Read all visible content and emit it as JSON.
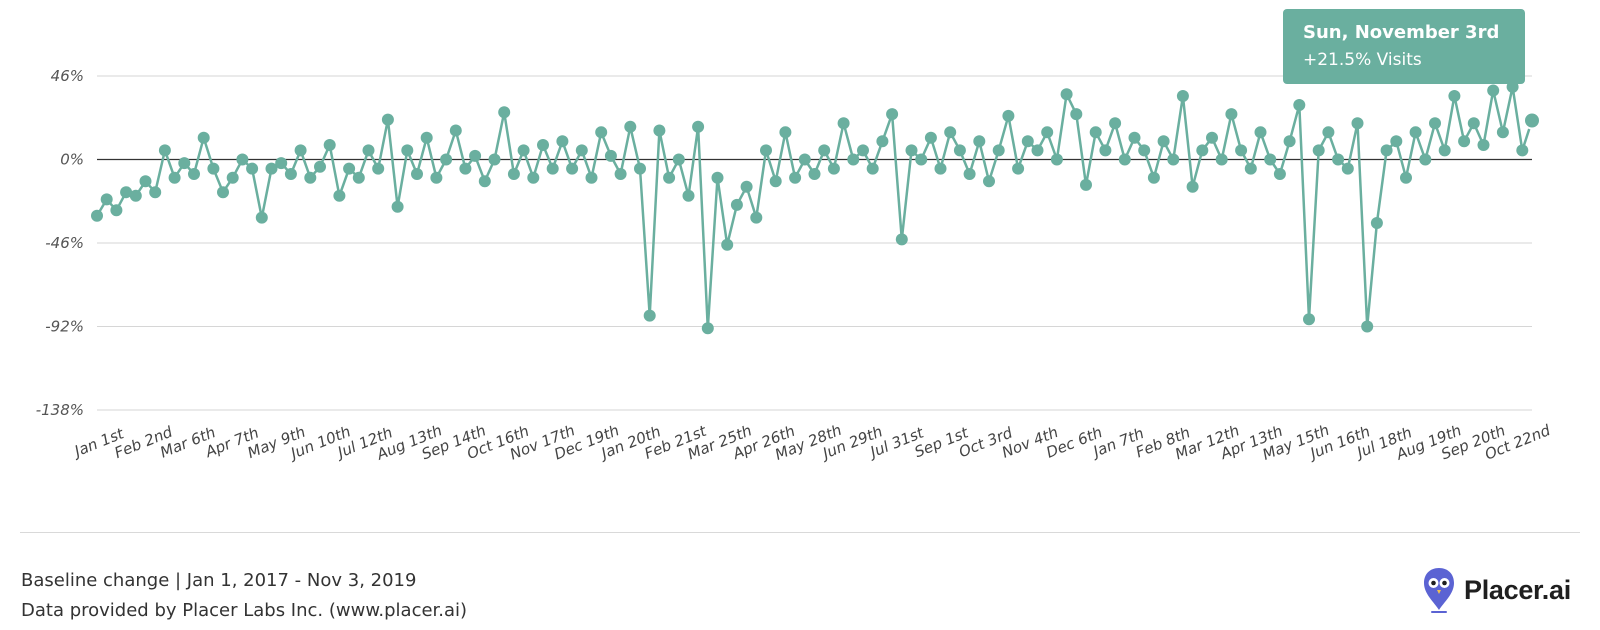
{
  "chart_data": {
    "type": "line",
    "series_color": "#6aaf9f",
    "y_ticks": [
      "46%",
      "0%",
      "-46%",
      "-92%",
      "-138%"
    ],
    "ylim": [
      -138,
      46
    ],
    "x_labels": [
      "Jan 1st",
      "Feb 2nd",
      "Mar 6th",
      "Apr 7th",
      "May 9th",
      "Jun 10th",
      "Jul 12th",
      "Aug 13th",
      "Sep 14th",
      "Oct 16th",
      "Nov 17th",
      "Dec 19th",
      "Jan 20th",
      "Feb 21st",
      "Mar 25th",
      "Apr 26th",
      "May 28th",
      "Jun 29th",
      "Jul 31st",
      "Sep 1st",
      "Oct 3rd",
      "Nov 4th",
      "Dec 6th",
      "Jan 7th",
      "Feb 8th",
      "Mar 12th",
      "Apr 13th",
      "May 15th",
      "Jun 16th",
      "Jul 18th",
      "Aug 19th",
      "Sep 20th",
      "Oct 22nd"
    ],
    "x_start": "2017-01-01",
    "x_end": "2019-11-03",
    "x_label_interval_days": 32,
    "series": [
      {
        "points": [
          [
            "2017-01-01",
            -31
          ],
          [
            "2017-01-08",
            -22
          ],
          [
            "2017-01-15",
            -28
          ],
          [
            "2017-01-22",
            -18
          ],
          [
            "2017-01-29",
            -20
          ],
          [
            "2017-02-05",
            -12
          ],
          [
            "2017-02-12",
            -18
          ],
          [
            "2017-02-19",
            5
          ],
          [
            "2017-02-26",
            -10
          ],
          [
            "2017-03-05",
            -2
          ],
          [
            "2017-03-12",
            -8
          ],
          [
            "2017-03-19",
            12
          ],
          [
            "2017-03-26",
            -5
          ],
          [
            "2017-04-02",
            -18
          ],
          [
            "2017-04-09",
            -10
          ],
          [
            "2017-04-16",
            0
          ],
          [
            "2017-04-23",
            -5
          ],
          [
            "2017-04-30",
            -32
          ],
          [
            "2017-05-07",
            -5
          ],
          [
            "2017-05-14",
            -2
          ],
          [
            "2017-05-21",
            -8
          ],
          [
            "2017-05-28",
            5
          ],
          [
            "2017-06-04",
            -10
          ],
          [
            "2017-06-11",
            -4
          ],
          [
            "2017-06-18",
            8
          ],
          [
            "2017-06-25",
            -20
          ],
          [
            "2017-07-02",
            -5
          ],
          [
            "2017-07-09",
            -10
          ],
          [
            "2017-07-16",
            5
          ],
          [
            "2017-07-23",
            -5
          ],
          [
            "2017-07-30",
            22
          ],
          [
            "2017-08-06",
            -26
          ],
          [
            "2017-08-13",
            5
          ],
          [
            "2017-08-20",
            -8
          ],
          [
            "2017-08-27",
            12
          ],
          [
            "2017-09-03",
            -10
          ],
          [
            "2017-09-10",
            0
          ],
          [
            "2017-09-17",
            16
          ],
          [
            "2017-09-24",
            -5
          ],
          [
            "2017-10-01",
            2
          ],
          [
            "2017-10-08",
            -12
          ],
          [
            "2017-10-15",
            0
          ],
          [
            "2017-10-22",
            26
          ],
          [
            "2017-10-29",
            -8
          ],
          [
            "2017-11-05",
            5
          ],
          [
            "2017-11-12",
            -10
          ],
          [
            "2017-11-19",
            8
          ],
          [
            "2017-11-26",
            -5
          ],
          [
            "2017-12-03",
            10
          ],
          [
            "2017-12-10",
            -5
          ],
          [
            "2017-12-17",
            5
          ],
          [
            "2017-12-24",
            -10
          ],
          [
            "2017-12-31",
            15
          ],
          [
            "2018-01-07",
            2
          ],
          [
            "2018-01-14",
            -8
          ],
          [
            "2018-01-21",
            18
          ],
          [
            "2018-01-28",
            -5
          ],
          [
            "2018-02-04",
            -86
          ],
          [
            "2018-02-11",
            16
          ],
          [
            "2018-02-18",
            -10
          ],
          [
            "2018-02-25",
            0
          ],
          [
            "2018-03-04",
            -20
          ],
          [
            "2018-03-11",
            18
          ],
          [
            "2018-03-18",
            -93
          ],
          [
            "2018-03-25",
            -10
          ],
          [
            "2018-04-01",
            -47
          ],
          [
            "2018-04-08",
            -25
          ],
          [
            "2018-04-15",
            -15
          ],
          [
            "2018-04-22",
            -32
          ],
          [
            "2018-04-29",
            5
          ],
          [
            "2018-05-06",
            -12
          ],
          [
            "2018-05-13",
            15
          ],
          [
            "2018-05-20",
            -10
          ],
          [
            "2018-05-27",
            0
          ],
          [
            "2018-06-03",
            -8
          ],
          [
            "2018-06-10",
            5
          ],
          [
            "2018-06-17",
            -5
          ],
          [
            "2018-06-24",
            20
          ],
          [
            "2018-07-01",
            0
          ],
          [
            "2018-07-08",
            5
          ],
          [
            "2018-07-15",
            -5
          ],
          [
            "2018-07-22",
            10
          ],
          [
            "2018-07-29",
            25
          ],
          [
            "2018-08-05",
            -44
          ],
          [
            "2018-08-12",
            5
          ],
          [
            "2018-08-19",
            0
          ],
          [
            "2018-08-26",
            12
          ],
          [
            "2018-09-02",
            -5
          ],
          [
            "2018-09-09",
            15
          ],
          [
            "2018-09-16",
            5
          ],
          [
            "2018-09-23",
            -8
          ],
          [
            "2018-09-30",
            10
          ],
          [
            "2018-10-07",
            -12
          ],
          [
            "2018-10-14",
            5
          ],
          [
            "2018-10-21",
            24
          ],
          [
            "2018-10-28",
            -5
          ],
          [
            "2018-11-04",
            10
          ],
          [
            "2018-11-11",
            5
          ],
          [
            "2018-11-18",
            15
          ],
          [
            "2018-11-25",
            0
          ],
          [
            "2018-12-02",
            36
          ],
          [
            "2018-12-09",
            25
          ],
          [
            "2018-12-16",
            -14
          ],
          [
            "2018-12-23",
            15
          ],
          [
            "2018-12-30",
            5
          ],
          [
            "2019-01-06",
            20
          ],
          [
            "2019-01-13",
            0
          ],
          [
            "2019-01-20",
            12
          ],
          [
            "2019-01-27",
            5
          ],
          [
            "2019-02-03",
            -10
          ],
          [
            "2019-02-10",
            10
          ],
          [
            "2019-02-17",
            0
          ],
          [
            "2019-02-24",
            35
          ],
          [
            "2019-03-03",
            -15
          ],
          [
            "2019-03-10",
            5
          ],
          [
            "2019-03-17",
            12
          ],
          [
            "2019-03-24",
            0
          ],
          [
            "2019-03-31",
            25
          ],
          [
            "2019-04-07",
            5
          ],
          [
            "2019-04-14",
            -5
          ],
          [
            "2019-04-21",
            15
          ],
          [
            "2019-04-28",
            0
          ],
          [
            "2019-05-05",
            -8
          ],
          [
            "2019-05-12",
            10
          ],
          [
            "2019-05-19",
            30
          ],
          [
            "2019-05-26",
            -88
          ],
          [
            "2019-06-02",
            5
          ],
          [
            "2019-06-09",
            15
          ],
          [
            "2019-06-16",
            0
          ],
          [
            "2019-06-23",
            -5
          ],
          [
            "2019-06-30",
            20
          ],
          [
            "2019-07-07",
            -92
          ],
          [
            "2019-07-14",
            -35
          ],
          [
            "2019-07-21",
            5
          ],
          [
            "2019-07-28",
            10
          ],
          [
            "2019-08-04",
            -10
          ],
          [
            "2019-08-11",
            15
          ],
          [
            "2019-08-18",
            0
          ],
          [
            "2019-08-25",
            20
          ],
          [
            "2019-09-01",
            5
          ],
          [
            "2019-09-08",
            35
          ],
          [
            "2019-09-15",
            10
          ],
          [
            "2019-09-22",
            20
          ],
          [
            "2019-09-29",
            8
          ],
          [
            "2019-10-06",
            38
          ],
          [
            "2019-10-13",
            15
          ],
          [
            "2019-10-20",
            40
          ],
          [
            "2019-10-27",
            5
          ],
          [
            "2019-11-03",
            21.5
          ]
        ]
      }
    ],
    "grid": true,
    "zero_line": true
  },
  "tooltip": {
    "title": "Sun, November 3rd",
    "value": "+21.5% Visits"
  },
  "footer": {
    "line1": "Baseline change | Jan 1, 2017 - Nov 3, 2019",
    "line2": "Data provided by Placer Labs Inc. (www.placer.ai)"
  },
  "brand": {
    "name": "Placer.ai",
    "icon": "owl-pin-icon",
    "icon_color": "#5b63d3"
  }
}
